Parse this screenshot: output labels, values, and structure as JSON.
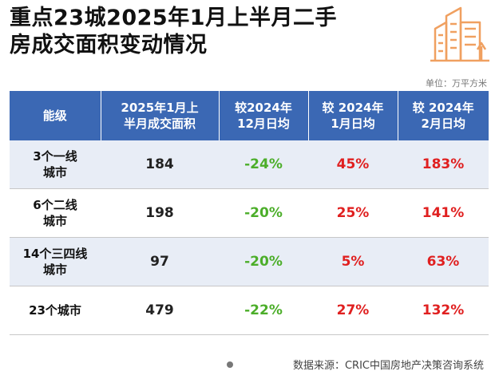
{
  "title": {
    "line1": "重点23城2025年1月上半月二手",
    "line2": "房成交面积变动情况"
  },
  "unit": "单位：万平方米",
  "table": {
    "headers": [
      [
        "能级"
      ],
      [
        "2025年1月上",
        "半月成交面积"
      ],
      [
        "较2024年",
        "12月日均"
      ],
      [
        "较 2024年",
        "1月日均"
      ],
      [
        "较 2024年",
        "2月日均"
      ]
    ],
    "rows": [
      {
        "level": [
          "3个一线",
          "城市"
        ],
        "area": "184",
        "dec": "-24%",
        "jan": "45%",
        "feb": "183%"
      },
      {
        "level": [
          "6个二线",
          "城市"
        ],
        "area": "198",
        "dec": "-20%",
        "jan": "25%",
        "feb": "141%"
      },
      {
        "level": [
          "14个三四线",
          "城市"
        ],
        "area": "97",
        "dec": "-20%",
        "jan": "5%",
        "feb": "63%"
      },
      {
        "level": [
          "23个城市"
        ],
        "area": "479",
        "dec": "-22%",
        "jan": "27%",
        "feb": "132%"
      }
    ]
  },
  "footer": "数据来源：CRIC中国房地产决策咨询系统",
  "colors": {
    "header_bg": "#3b68b4",
    "negative": "#4cae2a",
    "positive": "#e02020",
    "logo": "#f0a060"
  },
  "icons": {
    "logo": "building-icon"
  }
}
